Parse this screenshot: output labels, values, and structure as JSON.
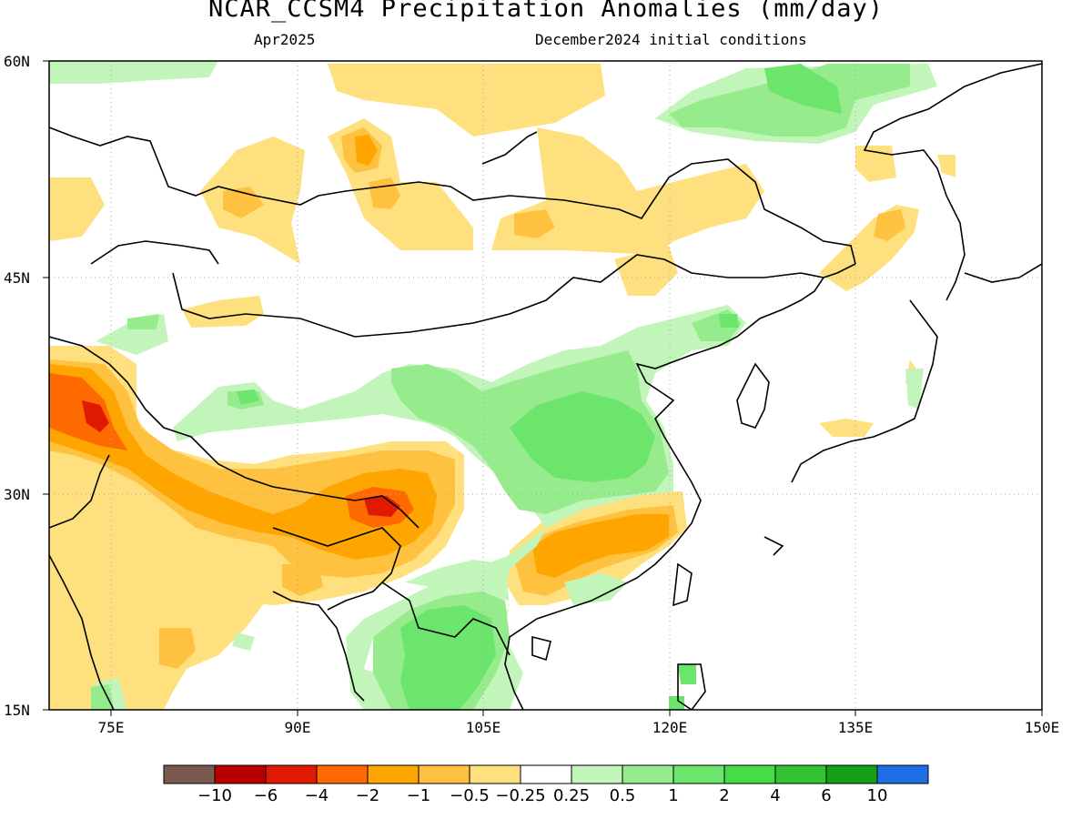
{
  "title": "NCAR_CCSM4 Precipitation Anomalies (mm/day)",
  "subtitle_left": "Apr2025",
  "subtitle_right": "December2024 initial conditions",
  "lat_labels": [
    "60N",
    "45N",
    "30N",
    "15N"
  ],
  "lon_labels": [
    "75E",
    "90E",
    "105E",
    "120E",
    "135E",
    "150E"
  ],
  "colorbar": {
    "colors": [
      "#7a5a4e",
      "#b80000",
      "#e01a00",
      "#ff6a00",
      "#ffa500",
      "#ffc140",
      "#ffe07f",
      "#ffffff",
      "#c2f5b9",
      "#96eb8c",
      "#6ce56c",
      "#46dc46",
      "#32c232",
      "#14a014",
      "#1e6ee6"
    ],
    "labels": [
      "−10",
      "−6",
      "−4",
      "−2",
      "−1",
      "−0.5",
      "−0.25",
      "0.25",
      "0.5",
      "1",
      "2",
      "4",
      "6",
      "10"
    ]
  }
}
